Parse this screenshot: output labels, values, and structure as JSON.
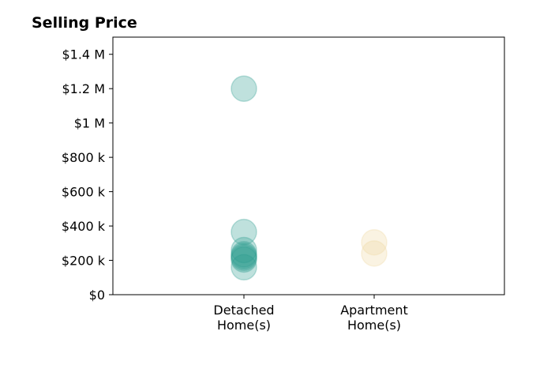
{
  "chart_data": {
    "type": "scatter",
    "title": "Selling Price",
    "xlabel": "",
    "ylabel": "",
    "categories": [
      [
        "Detached",
        "Home(s)"
      ],
      [
        "Apartment",
        "Home(s)"
      ]
    ],
    "ylim": [
      0,
      1500000
    ],
    "yticks": [
      0,
      200000,
      400000,
      600000,
      800000,
      1000000,
      1200000,
      1400000
    ],
    "ytick_labels": [
      "$0",
      "$200 k",
      "$400 k",
      "$600 k",
      "$800 k",
      "$1 M",
      "$1.2 M",
      "$1.4 M"
    ],
    "grid": false,
    "series": [
      {
        "category_index": 0,
        "color": "#2a9d8f",
        "values": [
          1200000,
          365000,
          260000,
          235000,
          225000,
          215000,
          205000,
          160000
        ]
      },
      {
        "category_index": 1,
        "color": "#f0d8a0",
        "values": [
          305000,
          240000
        ]
      }
    ]
  }
}
